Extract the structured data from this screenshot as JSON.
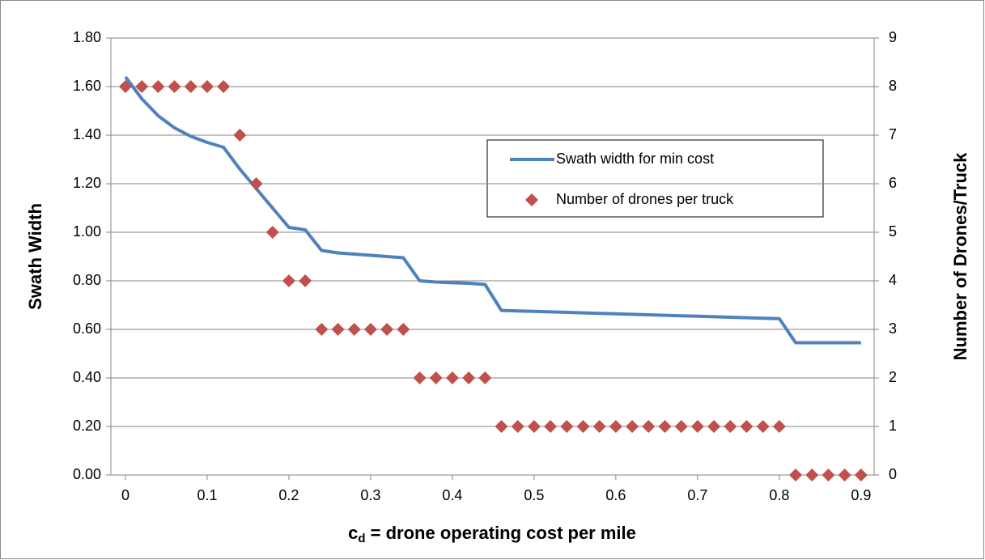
{
  "chart_data": {
    "type": "line_scatter",
    "x_label": {
      "base": "c",
      "sub": "d",
      "rest": " = drone operating cost per mile"
    },
    "y_label": "Swath Width",
    "y2_label": "Number of Drones/Truck",
    "x": [
      0,
      0.02,
      0.04,
      0.06,
      0.08,
      0.1,
      0.12,
      0.14,
      0.16,
      0.18,
      0.2,
      0.22,
      0.24,
      0.26,
      0.28,
      0.3,
      0.32,
      0.34,
      0.36,
      0.38,
      0.4,
      0.42,
      0.44,
      0.46,
      0.48,
      0.5,
      0.52,
      0.54,
      0.56,
      0.58,
      0.6,
      0.62,
      0.64,
      0.66,
      0.68,
      0.7,
      0.72,
      0.74,
      0.76,
      0.78,
      0.8,
      0.82,
      0.84,
      0.86,
      0.88,
      0.9
    ],
    "series": [
      {
        "name": "Swath width for min cost",
        "color": "#4f81bd",
        "kind": "line",
        "axis": "y",
        "values": [
          1.64,
          1.55,
          1.48,
          1.43,
          1.395,
          1.37,
          1.35,
          1.26,
          1.18,
          1.1,
          1.02,
          1.01,
          0.925,
          0.915,
          0.91,
          0.905,
          0.9,
          0.895,
          0.8,
          0.795,
          0.792,
          0.79,
          0.785,
          0.678,
          0.676,
          0.674,
          0.672,
          0.67,
          0.668,
          0.666,
          0.664,
          0.662,
          0.66,
          0.658,
          0.656,
          0.654,
          0.652,
          0.65,
          0.648,
          0.646,
          0.644,
          0.545,
          0.545,
          0.545,
          0.545,
          0.545
        ]
      },
      {
        "name": "Number of drones per truck",
        "color": "#c0504d",
        "kind": "scatter",
        "axis": "y2",
        "values": [
          8,
          8,
          8,
          8,
          8,
          8,
          8,
          7,
          6,
          5,
          4,
          4,
          3,
          3,
          3,
          3,
          3,
          3,
          2,
          2,
          2,
          2,
          2,
          1,
          1,
          1,
          1,
          1,
          1,
          1,
          1,
          1,
          1,
          1,
          1,
          1,
          1,
          1,
          1,
          1,
          1,
          0,
          0,
          0,
          0,
          0
        ]
      }
    ],
    "xlim": [
      -0.0178,
      0.916
    ],
    "xticks": [
      0,
      0.1,
      0.2,
      0.3,
      0.4,
      0.5,
      0.6,
      0.7,
      0.8,
      0.9
    ],
    "ylim": [
      0,
      1.8
    ],
    "yticks": [
      {
        "value": 0,
        "label": "0.00"
      },
      {
        "value": 0.2,
        "label": "0.20"
      },
      {
        "value": 0.4,
        "label": "0.40"
      },
      {
        "value": 0.6,
        "label": "0.60"
      },
      {
        "value": 0.8,
        "label": "0.80"
      },
      {
        "value": 1,
        "label": "1.00"
      },
      {
        "value": 1.2,
        "label": "1.20"
      },
      {
        "value": 1.4,
        "label": "1.40"
      },
      {
        "value": 1.6,
        "label": "1.60"
      },
      {
        "value": 1.8,
        "label": "1.80"
      }
    ],
    "y2lim": [
      0,
      9
    ],
    "y2ticks": [
      0,
      1,
      2,
      3,
      4,
      5,
      6,
      7,
      8,
      9
    ],
    "grid": true
  }
}
